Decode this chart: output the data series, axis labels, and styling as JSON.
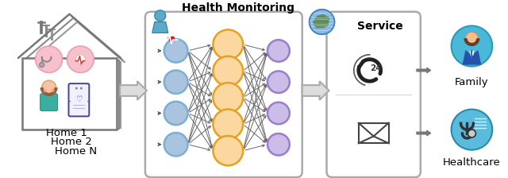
{
  "bg_color": "#ffffff",
  "nn_title": "Health Monitoring",
  "service_title": "Service",
  "family_label": "Family",
  "healthcare_label": "Healthcare",
  "home_labels": [
    "Home 1",
    "Home 2",
    "Home N"
  ],
  "input_face": "#aac4e0",
  "input_edge": "#7bafd4",
  "hidden_face": "#fad8a0",
  "hidden_edge": "#e8a020",
  "output_face": "#cbbde8",
  "output_edge": "#9b7dcc",
  "conn_color": "#777777",
  "box_edge": "#aaaaaa",
  "house_color": "#888888",
  "arrow_face": "#cccccc",
  "arrow_edge": "#aaaaaa",
  "pink_circle": "#f7c0cc",
  "pink_circle_edge": "#e8a0b0",
  "n_input": 4,
  "n_hidden": 5,
  "n_output": 4,
  "figw": 6.4,
  "figh": 2.24,
  "dpi": 100
}
